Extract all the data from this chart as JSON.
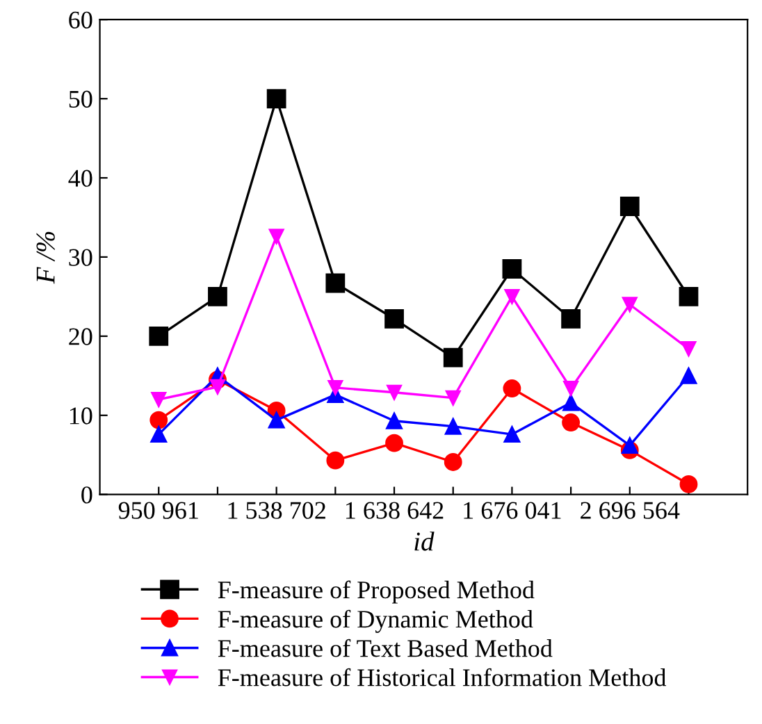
{
  "chart_data": {
    "type": "line",
    "xlabel": "id",
    "ylabel": "F /%",
    "categories": [
      "950 961",
      null,
      "1 538 702",
      null,
      "1 638 642",
      null,
      "1 676 041",
      null,
      "2 696 564",
      null
    ],
    "series": [
      {
        "name": "F-measure of Proposed Method",
        "color": "#000000",
        "marker": "square",
        "values": [
          20,
          25,
          50,
          26.7,
          22.2,
          17.3,
          28.5,
          22.2,
          36.4,
          25
        ]
      },
      {
        "name": "F-measure of Dynamic Method",
        "color": "#ff0000",
        "marker": "circle",
        "values": [
          9.4,
          14.5,
          10.6,
          4.3,
          6.5,
          4.1,
          13.4,
          9.1,
          5.6,
          1.3
        ]
      },
      {
        "name": "F-measure of Text Based Method",
        "color": "#0000ff",
        "marker": "triangle",
        "values": [
          7.6,
          15,
          9.4,
          12.6,
          9.3,
          8.6,
          7.6,
          11.6,
          6.2,
          15
        ]
      },
      {
        "name": "F-measure of Historical Information Method",
        "color": "#ff00ff",
        "marker": "triangle_down",
        "values": [
          12,
          13.6,
          32.6,
          13.5,
          12.9,
          12.2,
          25,
          13.4,
          24,
          18.4
        ]
      }
    ],
    "ylim": [
      0,
      60
    ],
    "yticks": [
      0,
      10,
      20,
      30,
      40,
      50,
      60
    ],
    "grid": false,
    "legend": "bottom",
    "line_style": "solid"
  }
}
